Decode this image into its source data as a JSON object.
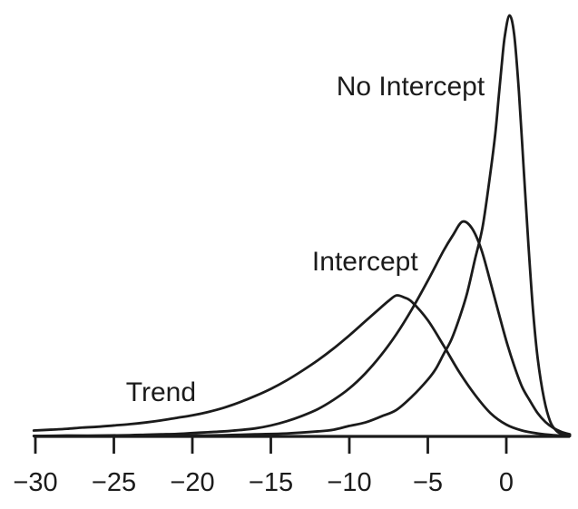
{
  "chart_data": {
    "type": "line",
    "title": "",
    "xlabel": "",
    "ylabel": "",
    "grid": false,
    "legend_position": "none",
    "xlim": [
      -30.1,
      4.05
    ],
    "ylim": [
      0,
      1.04
    ],
    "line_color": "#1b1b1b",
    "text_color": "#1b1b1b",
    "background_color": "#ffffff",
    "x_ticks": [
      {
        "value": -30,
        "label": "−30"
      },
      {
        "value": -25,
        "label": "−25"
      },
      {
        "value": -20,
        "label": "−20"
      },
      {
        "value": -15,
        "label": "−15"
      },
      {
        "value": -10,
        "label": "−10"
      },
      {
        "value": -5,
        "label": "−5"
      },
      {
        "value": 0,
        "label": "0"
      }
    ],
    "series": [
      {
        "name": "Trend",
        "peak": {
          "x": -7.0,
          "y": 0.335
        },
        "points": [
          [
            -30.1,
            0.014
          ],
          [
            -29,
            0.016
          ],
          [
            -28,
            0.018
          ],
          [
            -27,
            0.021
          ],
          [
            -26,
            0.023
          ],
          [
            -25,
            0.026
          ],
          [
            -24,
            0.029
          ],
          [
            -23,
            0.033
          ],
          [
            -22,
            0.038
          ],
          [
            -21,
            0.044
          ],
          [
            -20,
            0.05
          ],
          [
            -19,
            0.058
          ],
          [
            -18,
            0.068
          ],
          [
            -17,
            0.081
          ],
          [
            -16,
            0.096
          ],
          [
            -15,
            0.113
          ],
          [
            -14,
            0.133
          ],
          [
            -13,
            0.156
          ],
          [
            -12,
            0.181
          ],
          [
            -11,
            0.209
          ],
          [
            -10,
            0.24
          ],
          [
            -9,
            0.273
          ],
          [
            -8,
            0.306
          ],
          [
            -7.5,
            0.322
          ],
          [
            -7,
            0.335
          ],
          [
            -6.5,
            0.33
          ],
          [
            -6,
            0.319
          ],
          [
            -5,
            0.276
          ],
          [
            -4,
            0.216
          ],
          [
            -3,
            0.153
          ],
          [
            -2,
            0.099
          ],
          [
            -1,
            0.055
          ],
          [
            0,
            0.028
          ],
          [
            1,
            0.014
          ],
          [
            2,
            0.007
          ],
          [
            3,
            0.003
          ],
          [
            4.05,
            0.001
          ]
        ]
      },
      {
        "name": "Intercept",
        "peak": {
          "x": -2.8,
          "y": 0.51
        },
        "points": [
          [
            -30.1,
            0.001
          ],
          [
            -28,
            0.002
          ],
          [
            -26,
            0.002
          ],
          [
            -24,
            0.003
          ],
          [
            -23,
            0.004
          ],
          [
            -22,
            0.005
          ],
          [
            -21,
            0.006
          ],
          [
            -20,
            0.008
          ],
          [
            -19,
            0.01
          ],
          [
            -18,
            0.012
          ],
          [
            -17,
            0.015
          ],
          [
            -16,
            0.019
          ],
          [
            -15,
            0.026
          ],
          [
            -14,
            0.036
          ],
          [
            -13,
            0.049
          ],
          [
            -12,
            0.065
          ],
          [
            -11,
            0.087
          ],
          [
            -10,
            0.114
          ],
          [
            -9,
            0.149
          ],
          [
            -8,
            0.192
          ],
          [
            -7,
            0.243
          ],
          [
            -6,
            0.303
          ],
          [
            -5,
            0.37
          ],
          [
            -4,
            0.441
          ],
          [
            -3.4,
            0.478
          ],
          [
            -2.8,
            0.51
          ],
          [
            -2.2,
            0.495
          ],
          [
            -1.6,
            0.445
          ],
          [
            -1,
            0.365
          ],
          [
            -0.5,
            0.295
          ],
          [
            0,
            0.227
          ],
          [
            0.5,
            0.168
          ],
          [
            1,
            0.118
          ],
          [
            1.5,
            0.085
          ],
          [
            2,
            0.055
          ],
          [
            2.5,
            0.034
          ],
          [
            3,
            0.02
          ],
          [
            3.5,
            0.011
          ],
          [
            4.05,
            0.005
          ]
        ]
      },
      {
        "name": "No Intercept",
        "peak": {
          "x": 0.2,
          "y": 1.0
        },
        "points": [
          [
            -30.1,
            0.001
          ],
          [
            -26,
            0.001
          ],
          [
            -22,
            0.002
          ],
          [
            -20,
            0.002
          ],
          [
            -18,
            0.003
          ],
          [
            -16,
            0.005
          ],
          [
            -14,
            0.007
          ],
          [
            -12,
            0.012
          ],
          [
            -11,
            0.016
          ],
          [
            -10,
            0.025
          ],
          [
            -9,
            0.033
          ],
          [
            -8,
            0.047
          ],
          [
            -7,
            0.063
          ],
          [
            -6,
            0.095
          ],
          [
            -5,
            0.135
          ],
          [
            -4.5,
            0.16
          ],
          [
            -4,
            0.195
          ],
          [
            -3.5,
            0.23
          ],
          [
            -3,
            0.28
          ],
          [
            -2.5,
            0.34
          ],
          [
            -2,
            0.42
          ],
          [
            -1.5,
            0.5
          ],
          [
            -1,
            0.63
          ],
          [
            -0.7,
            0.72
          ],
          [
            -0.5,
            0.8
          ],
          [
            -0.3,
            0.88
          ],
          [
            -0.1,
            0.95
          ],
          [
            0.2,
            1.0
          ],
          [
            0.5,
            0.955
          ],
          [
            0.8,
            0.82
          ],
          [
            1.1,
            0.64
          ],
          [
            1.4,
            0.46
          ],
          [
            1.7,
            0.3
          ],
          [
            2,
            0.185
          ],
          [
            2.4,
            0.09
          ],
          [
            2.8,
            0.035
          ],
          [
            3.2,
            0.013
          ],
          [
            3.6,
            0.005
          ],
          [
            4.05,
            0.002
          ]
        ]
      }
    ],
    "annotations": [
      {
        "text": "Trend",
        "x": -22.0,
        "y": 0.106,
        "series": "Trend"
      },
      {
        "text": "Intercept",
        "x": -9.0,
        "y": 0.416,
        "series": "Intercept"
      },
      {
        "text": "No Intercept",
        "x": -6.1,
        "y": 0.832,
        "series": "No Intercept"
      }
    ]
  }
}
